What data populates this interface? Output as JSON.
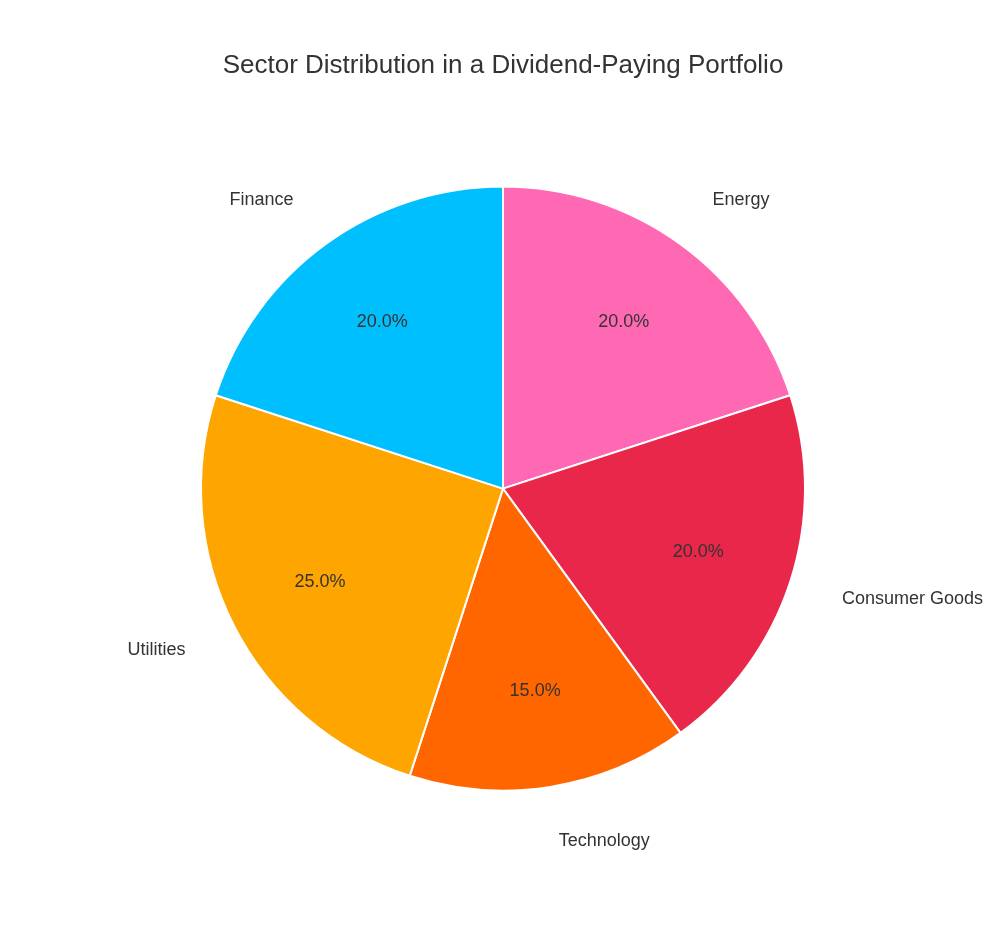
{
  "chart_data": {
    "type": "pie",
    "title": "Sector Distribution in a Dividend-Paying Portfolio",
    "categories": [
      "Energy",
      "Consumer Goods",
      "Technology",
      "Utilities",
      "Finance"
    ],
    "values": [
      20.0,
      20.0,
      15.0,
      25.0,
      20.0
    ],
    "value_labels": [
      "20.0%",
      "20.0%",
      "15.0%",
      "25.0%",
      "20.0%"
    ],
    "colors": [
      "#FF69B4",
      "#E8274B",
      "#FF6600",
      "#FFA500",
      "#00BFFF"
    ],
    "data_labels": true
  }
}
